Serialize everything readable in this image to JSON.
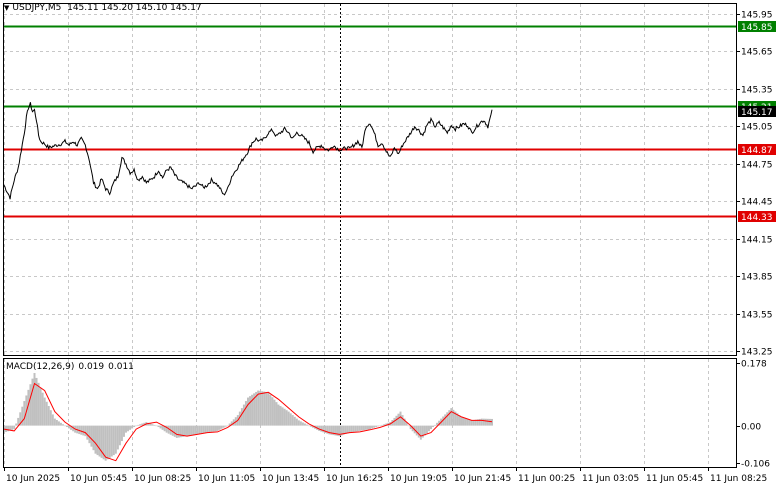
{
  "header": {
    "symbol": "USDJPY,M5",
    "ohlc": "145.11 145.20 145.10 145.17"
  },
  "macd_header": {
    "label": "MACD(12,26,9)",
    "main": "0.019",
    "signal": "0.011"
  },
  "colors": {
    "price_line": "#000000",
    "grid": "#c8c8c8",
    "resistance": "#008000",
    "support": "#e00000",
    "histogram": "#c0c0c0",
    "signal_line": "#ff0000",
    "label_text": "#ffffff",
    "current_price_bg": "#000000"
  },
  "chart_data": [
    {
      "type": "line",
      "name": "price",
      "y_ticks": [
        "145.95",
        "145.65",
        "145.35",
        "145.05",
        "144.75",
        "144.45",
        "144.15",
        "143.85",
        "143.55",
        "143.25"
      ],
      "ylim": [
        143.22,
        146.03
      ],
      "x_labels": [
        "10 Jun 2025",
        "10 Jun 05:45",
        "10 Jun 08:25",
        "10 Jun 11:05",
        "10 Jun 13:45",
        "10 Jun 16:25",
        "10 Jun 19:05",
        "10 Jun 21:45",
        "11 Jun 00:25",
        "11 Jun 03:05",
        "11 Jun 05:45",
        "11 Jun 08:25"
      ],
      "xlim": [
        0,
        360
      ],
      "period_separator_x": 165,
      "series": [
        {
          "x": [
            0,
            3,
            5,
            7,
            10,
            11,
            12,
            13,
            14,
            15,
            16,
            17,
            18,
            20,
            22,
            24,
            26,
            28,
            30,
            32,
            34,
            36,
            38,
            40,
            42,
            44,
            46,
            48,
            50,
            52,
            54,
            56,
            58,
            60,
            62,
            64,
            66,
            68,
            70,
            72,
            74,
            76,
            78,
            80,
            82,
            84,
            86,
            88,
            90,
            92,
            94,
            96,
            98,
            100,
            102,
            104,
            106,
            108,
            110,
            112,
            114,
            116,
            118,
            120,
            122,
            124,
            126,
            128,
            130,
            132,
            134,
            136,
            138,
            140,
            142,
            144,
            146,
            148,
            150,
            152,
            154,
            156,
            158,
            160,
            162,
            164,
            166,
            168,
            170,
            172,
            174,
            176,
            178,
            180,
            182,
            184,
            186,
            188,
            190,
            192,
            194,
            196,
            198,
            200,
            202,
            204,
            206,
            208,
            210,
            212,
            214,
            216,
            218,
            220,
            222,
            224,
            226,
            228,
            230,
            232,
            234,
            236,
            238,
            240
          ],
          "y": [
            144.58,
            144.48,
            144.62,
            144.72,
            145.0,
            145.12,
            145.2,
            145.23,
            145.17,
            145.18,
            145.1,
            144.98,
            144.93,
            144.91,
            144.88,
            144.89,
            144.9,
            144.91,
            144.93,
            144.9,
            144.93,
            144.9,
            144.95,
            144.9,
            144.78,
            144.6,
            144.55,
            144.63,
            144.55,
            144.52,
            144.6,
            144.65,
            144.8,
            144.75,
            144.68,
            144.7,
            144.62,
            144.65,
            144.6,
            144.62,
            144.65,
            144.7,
            144.64,
            144.7,
            144.72,
            144.66,
            144.62,
            144.6,
            144.58,
            144.55,
            144.57,
            144.6,
            144.56,
            144.58,
            144.62,
            144.6,
            144.56,
            144.5,
            144.55,
            144.65,
            144.7,
            144.75,
            144.8,
            144.85,
            144.92,
            144.95,
            144.93,
            144.95,
            145.0,
            145.02,
            144.97,
            145.0,
            145.03,
            145.0,
            144.95,
            145.0,
            144.98,
            144.95,
            144.92,
            144.85,
            144.88,
            144.9,
            144.87,
            144.86,
            144.9,
            144.87,
            144.86,
            144.88,
            144.87,
            144.9,
            144.93,
            144.88,
            145.05,
            145.08,
            145.0,
            144.9,
            144.92,
            144.85,
            144.8,
            144.88,
            144.83,
            144.9,
            144.95,
            145.0,
            145.05,
            145.02,
            144.98,
            145.06,
            145.1,
            145.05,
            145.08,
            145.04,
            145.0,
            145.06,
            145.03,
            145.05,
            145.07,
            145.06,
            145.0,
            145.04,
            145.08,
            145.1,
            145.05,
            145.17
          ]
        }
      ],
      "levels": [
        {
          "value": 145.85,
          "label": "145.85",
          "color": "#008000"
        },
        {
          "value": 145.21,
          "label": "145.21",
          "color": "#008000"
        },
        {
          "value": 144.87,
          "label": "144.87",
          "color": "#e00000"
        },
        {
          "value": 144.33,
          "label": "144.33",
          "color": "#e00000"
        }
      ],
      "current_price": {
        "value": 145.17,
        "label": "145.17"
      }
    },
    {
      "type": "bar",
      "name": "MACD(12,26,9)",
      "y_ticks": [
        "0.178",
        "0.00",
        "-0.106"
      ],
      "ylim": [
        -0.118,
        0.19
      ],
      "xlim": [
        0,
        360
      ],
      "series": [
        {
          "name": "main",
          "x": [
            0,
            5,
            10,
            15,
            20,
            25,
            30,
            35,
            40,
            45,
            50,
            55,
            60,
            65,
            70,
            75,
            80,
            85,
            90,
            95,
            100,
            105,
            110,
            115,
            120,
            125,
            130,
            135,
            140,
            145,
            150,
            155,
            160,
            165,
            170,
            175,
            180,
            185,
            190,
            195,
            200,
            205,
            210,
            215,
            220,
            225,
            230,
            235,
            240
          ],
          "y": [
            -0.02,
            -0.01,
            0.07,
            0.15,
            0.08,
            0.02,
            0.0,
            -0.02,
            -0.03,
            -0.08,
            -0.1,
            -0.08,
            -0.02,
            0.0,
            0.01,
            0.0,
            -0.02,
            -0.035,
            -0.03,
            -0.025,
            -0.02,
            -0.015,
            0.0,
            0.03,
            0.08,
            0.1,
            0.095,
            0.06,
            0.04,
            0.015,
            0.0,
            -0.015,
            -0.025,
            -0.03,
            -0.02,
            -0.015,
            -0.01,
            0.0,
            0.01,
            0.04,
            -0.01,
            -0.04,
            -0.01,
            0.02,
            0.05,
            0.025,
            0.015,
            0.02,
            0.019
          ]
        },
        {
          "name": "signal",
          "x": [
            0,
            5,
            10,
            15,
            20,
            25,
            30,
            35,
            40,
            45,
            50,
            55,
            60,
            65,
            70,
            75,
            80,
            85,
            90,
            95,
            100,
            105,
            110,
            115,
            120,
            125,
            130,
            135,
            140,
            145,
            150,
            155,
            160,
            165,
            170,
            175,
            180,
            185,
            190,
            195,
            200,
            205,
            210,
            215,
            220,
            225,
            230,
            235,
            240
          ],
          "y": [
            -0.01,
            -0.015,
            0.02,
            0.12,
            0.1,
            0.04,
            0.01,
            -0.01,
            -0.02,
            -0.05,
            -0.09,
            -0.1,
            -0.05,
            -0.01,
            0.005,
            0.01,
            -0.005,
            -0.025,
            -0.03,
            -0.025,
            -0.02,
            -0.018,
            -0.005,
            0.015,
            0.06,
            0.09,
            0.095,
            0.075,
            0.05,
            0.025,
            0.005,
            -0.01,
            -0.02,
            -0.025,
            -0.02,
            -0.018,
            -0.012,
            -0.005,
            0.005,
            0.025,
            0.0,
            -0.03,
            -0.02,
            0.01,
            0.04,
            0.025,
            0.015,
            0.015,
            0.011
          ]
        }
      ]
    }
  ]
}
